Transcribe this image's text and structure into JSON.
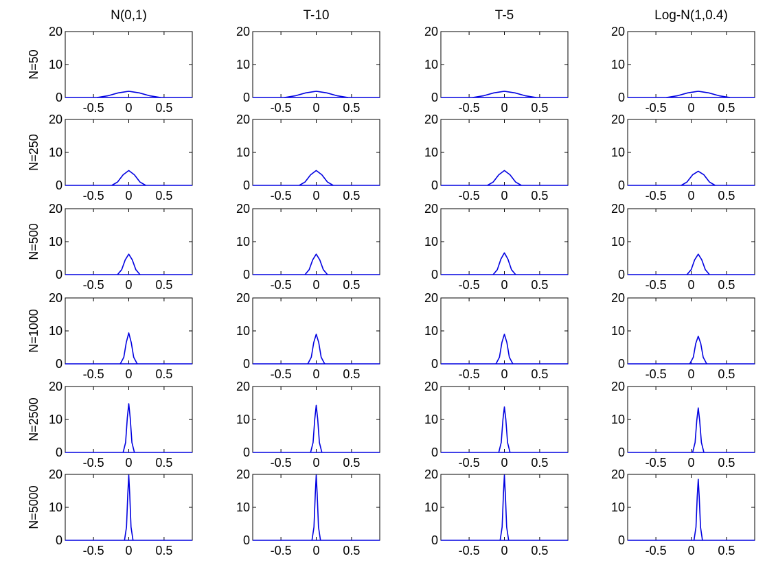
{
  "figure": {
    "columns": [
      "N(0,1)",
      "T-10",
      "T-5",
      "Log-N(1,0.4)"
    ],
    "rows": [
      "N=50",
      "N=250",
      "N=500",
      "N=1000",
      "N=2500",
      "N=5000"
    ],
    "line_color": "#0000e0",
    "axis_color": "#000000"
  },
  "chart_data": {
    "type": "line",
    "layout": "grid 6 rows x 4 columns of small multiples",
    "xlim": [
      -0.9,
      0.9
    ],
    "ylim": [
      0,
      20
    ],
    "xticks": [
      -0.5,
      0,
      0.5
    ],
    "xtick_labels": [
      "-0.5",
      "0",
      "0.5"
    ],
    "yticks": [
      0,
      10,
      20
    ],
    "ytick_labels": [
      "0",
      "10",
      "20"
    ],
    "grid": false,
    "legend": "none",
    "panels": [
      {
        "row": "N=50",
        "col": "N(0,1)",
        "x": [
          -0.45,
          -0.3,
          -0.15,
          0,
          0.15,
          0.3,
          0.45
        ],
        "y": [
          0,
          0.5,
          1.4,
          1.9,
          1.4,
          0.5,
          0
        ]
      },
      {
        "row": "N=50",
        "col": "T-10",
        "x": [
          -0.45,
          -0.3,
          -0.15,
          0,
          0.15,
          0.3,
          0.45
        ],
        "y": [
          0,
          0.5,
          1.4,
          1.9,
          1.4,
          0.5,
          0
        ]
      },
      {
        "row": "N=50",
        "col": "T-5",
        "x": [
          -0.45,
          -0.3,
          -0.15,
          0,
          0.15,
          0.3,
          0.45
        ],
        "y": [
          0,
          0.5,
          1.4,
          1.9,
          1.4,
          0.5,
          0
        ]
      },
      {
        "row": "N=50",
        "col": "Log-N(1,0.4)",
        "x": [
          -0.35,
          -0.2,
          -0.05,
          0.1,
          0.25,
          0.4,
          0.55
        ],
        "y": [
          0,
          0.5,
          1.4,
          1.9,
          1.4,
          0.5,
          0
        ]
      },
      {
        "row": "N=250",
        "col": "N(0,1)",
        "x": [
          -0.24,
          -0.16,
          -0.08,
          0,
          0.08,
          0.16,
          0.24
        ],
        "y": [
          0,
          1.0,
          3.2,
          4.5,
          3.2,
          1.0,
          0
        ]
      },
      {
        "row": "N=250",
        "col": "T-10",
        "x": [
          -0.24,
          -0.16,
          -0.08,
          0,
          0.08,
          0.16,
          0.24
        ],
        "y": [
          0,
          1.0,
          3.2,
          4.5,
          3.2,
          1.0,
          0
        ]
      },
      {
        "row": "N=250",
        "col": "T-5",
        "x": [
          -0.24,
          -0.16,
          -0.08,
          0,
          0.08,
          0.16,
          0.24
        ],
        "y": [
          0,
          1.0,
          3.2,
          4.5,
          3.2,
          1.0,
          0
        ]
      },
      {
        "row": "N=250",
        "col": "Log-N(1,0.4)",
        "x": [
          -0.14,
          -0.06,
          0.02,
          0.1,
          0.18,
          0.26,
          0.34
        ],
        "y": [
          0,
          1.0,
          3.2,
          4.3,
          3.2,
          1.0,
          0
        ]
      },
      {
        "row": "N=500",
        "col": "N(0,1)",
        "x": [
          -0.16,
          -0.1,
          -0.05,
          0,
          0.05,
          0.1,
          0.16
        ],
        "y": [
          0,
          1.5,
          4.5,
          6.2,
          4.5,
          1.5,
          0
        ]
      },
      {
        "row": "N=500",
        "col": "T-10",
        "x": [
          -0.16,
          -0.1,
          -0.05,
          0,
          0.05,
          0.1,
          0.16
        ],
        "y": [
          0,
          1.5,
          4.5,
          6.2,
          4.5,
          1.5,
          0
        ]
      },
      {
        "row": "N=500",
        "col": "T-5",
        "x": [
          -0.16,
          -0.1,
          -0.05,
          0,
          0.05,
          0.1,
          0.16
        ],
        "y": [
          0,
          1.5,
          4.7,
          6.6,
          4.7,
          1.5,
          0
        ]
      },
      {
        "row": "N=500",
        "col": "Log-N(1,0.4)",
        "x": [
          -0.06,
          0,
          0.05,
          0.1,
          0.15,
          0.2,
          0.26
        ],
        "y": [
          0,
          1.5,
          4.5,
          6.2,
          4.5,
          1.5,
          0
        ]
      },
      {
        "row": "N=1000",
        "col": "N(0,1)",
        "x": [
          -0.12,
          -0.07,
          -0.035,
          0,
          0.035,
          0.07,
          0.12
        ],
        "y": [
          0,
          2.0,
          6.5,
          9.4,
          6.5,
          2.0,
          0
        ]
      },
      {
        "row": "N=1000",
        "col": "T-10",
        "x": [
          -0.12,
          -0.07,
          -0.035,
          0,
          0.035,
          0.07,
          0.12
        ],
        "y": [
          0,
          2.0,
          6.5,
          9.0,
          6.5,
          2.0,
          0
        ]
      },
      {
        "row": "N=1000",
        "col": "T-5",
        "x": [
          -0.12,
          -0.07,
          -0.035,
          0,
          0.035,
          0.07,
          0.12
        ],
        "y": [
          0,
          2.0,
          6.5,
          9.0,
          6.5,
          2.0,
          0
        ]
      },
      {
        "row": "N=1000",
        "col": "Log-N(1,0.4)",
        "x": [
          -0.02,
          0.03,
          0.065,
          0.1,
          0.135,
          0.17,
          0.22
        ],
        "y": [
          0,
          2.0,
          6.2,
          8.4,
          6.2,
          2.0,
          0
        ]
      },
      {
        "row": "N=2500",
        "col": "N(0,1)",
        "x": [
          -0.08,
          -0.045,
          -0.02,
          0,
          0.02,
          0.045,
          0.08
        ],
        "y": [
          0,
          3.0,
          10.5,
          14.8,
          10.5,
          3.0,
          0
        ]
      },
      {
        "row": "N=2500",
        "col": "T-10",
        "x": [
          -0.08,
          -0.045,
          -0.02,
          0,
          0.02,
          0.045,
          0.08
        ],
        "y": [
          0,
          3.0,
          10.2,
          14.3,
          10.2,
          3.0,
          0
        ]
      },
      {
        "row": "N=2500",
        "col": "T-5",
        "x": [
          -0.08,
          -0.045,
          -0.02,
          0,
          0.02,
          0.045,
          0.08
        ],
        "y": [
          0,
          3.0,
          10.0,
          13.8,
          10.0,
          3.0,
          0
        ]
      },
      {
        "row": "N=2500",
        "col": "Log-N(1,0.4)",
        "x": [
          0.02,
          0.055,
          0.08,
          0.1,
          0.12,
          0.145,
          0.18
        ],
        "y": [
          0,
          3.0,
          9.8,
          13.5,
          9.8,
          3.0,
          0
        ]
      },
      {
        "row": "N=5000",
        "col": "N(0,1)",
        "x": [
          -0.06,
          -0.032,
          -0.014,
          0,
          0.014,
          0.032,
          0.06
        ],
        "y": [
          0,
          4.0,
          14.0,
          19.8,
          14.0,
          4.0,
          0
        ]
      },
      {
        "row": "N=5000",
        "col": "T-10",
        "x": [
          -0.06,
          -0.032,
          -0.014,
          0,
          0.014,
          0.032,
          0.06
        ],
        "y": [
          0,
          4.0,
          14.0,
          19.8,
          14.0,
          4.0,
          0
        ]
      },
      {
        "row": "N=5000",
        "col": "T-5",
        "x": [
          -0.06,
          -0.032,
          -0.014,
          0,
          0.014,
          0.032,
          0.06
        ],
        "y": [
          0,
          4.0,
          14.0,
          19.8,
          14.0,
          4.0,
          0
        ]
      },
      {
        "row": "N=5000",
        "col": "Log-N(1,0.4)",
        "x": [
          0.04,
          0.068,
          0.086,
          0.1,
          0.114,
          0.132,
          0.16
        ],
        "y": [
          0,
          4.0,
          13.2,
          18.5,
          13.2,
          4.0,
          0
        ]
      }
    ]
  }
}
